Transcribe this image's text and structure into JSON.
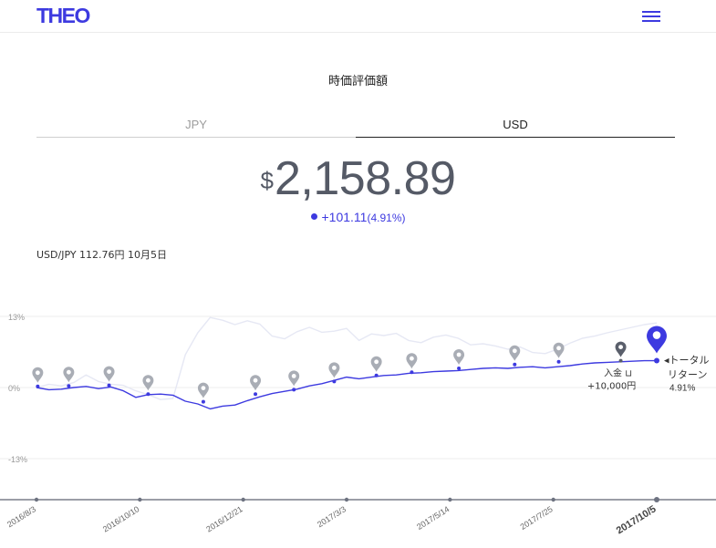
{
  "header": {
    "logo": "THEO"
  },
  "section_title": "時価評価額",
  "tabs": [
    {
      "label": "JPY",
      "active": false
    },
    {
      "label": "USD",
      "active": true
    }
  ],
  "value": {
    "currency_symbol": "$",
    "amount": "2,158.89"
  },
  "change": {
    "amount": "+101.11",
    "percent": "(4.91%)"
  },
  "fx_rate": "USD/JPY 112.76円 10月5日",
  "colors": {
    "accent": "#3d3ae0",
    "benchmark": "#e6e8f4",
    "marker": "#a9adb5",
    "marker_dark": "#5a5f6b"
  },
  "chart_data": {
    "type": "line",
    "x_ticks": [
      "2016/8/3",
      "2016/10/10",
      "2016/12/21",
      "2017/3/3",
      "2017/5/14",
      "2017/7/25",
      "2017/10/5"
    ],
    "y_ticks": [
      {
        "label": "13%",
        "value": 13
      },
      {
        "label": "0%",
        "value": 0
      },
      {
        "label": "-13%",
        "value": -13
      }
    ],
    "ylim": [
      -21,
      23
    ],
    "xlim": [
      0,
      100
    ],
    "series": [
      {
        "role": "portfolio",
        "x": [
          0,
          2,
          4,
          6,
          8,
          10,
          12,
          14,
          16,
          18,
          20,
          22,
          24,
          26,
          28,
          30,
          32,
          34,
          36,
          38,
          40,
          42,
          44,
          46,
          48,
          50,
          52,
          54,
          56,
          58,
          60,
          62,
          64,
          66,
          68,
          70,
          72,
          74,
          76,
          78,
          80,
          82,
          84,
          86,
          88,
          90,
          92,
          94,
          96,
          98,
          100
        ],
        "values": [
          0,
          -0.4,
          -0.3,
          0,
          0.2,
          -0.2,
          0.1,
          -0.6,
          -1.8,
          -1.3,
          -1.2,
          -1.4,
          -2.5,
          -3.0,
          -3.9,
          -3.4,
          -3.2,
          -2.4,
          -1.7,
          -1.1,
          -0.7,
          -0.3,
          0.3,
          0.7,
          1.3,
          1.9,
          1.6,
          1.9,
          2.2,
          2.3,
          2.6,
          2.7,
          2.9,
          3.0,
          3.1,
          3.3,
          3.5,
          3.6,
          3.5,
          3.7,
          3.8,
          3.6,
          3.8,
          4.0,
          4.3,
          4.5,
          4.6,
          4.7,
          4.8,
          4.9,
          4.91
        ]
      },
      {
        "role": "benchmark",
        "x": [
          0,
          2,
          4,
          6,
          8,
          10,
          12,
          14,
          16,
          18,
          20,
          22,
          24,
          26,
          28,
          30,
          32,
          34,
          36,
          38,
          40,
          42,
          44,
          46,
          48,
          50,
          52,
          54,
          56,
          58,
          60,
          62,
          64,
          66,
          68,
          70,
          72,
          74,
          76,
          78,
          80,
          82,
          84,
          86,
          88,
          90,
          92,
          94,
          96,
          98,
          100
        ],
        "values": [
          0,
          0.6,
          0.3,
          0.9,
          2.3,
          1.1,
          0.6,
          0.4,
          -0.6,
          -1.3,
          -2.2,
          -2.0,
          6.0,
          10.0,
          12.8,
          12.3,
          11.5,
          12.2,
          11.6,
          9.4,
          8.9,
          10.2,
          11.0,
          10.1,
          10.3,
          10.8,
          8.6,
          9.8,
          9.5,
          9.9,
          8.6,
          8.2,
          9.2,
          9.6,
          9.0,
          7.8,
          8.0,
          7.6,
          7.0,
          7.4,
          6.4,
          6.2,
          7.0,
          8.1,
          9.0,
          9.4,
          10.0,
          10.5,
          11.0,
          11.5,
          11.8
        ]
      }
    ],
    "markers": [
      {
        "x": 0.2,
        "y": 0.2,
        "label": "",
        "style": "light"
      },
      {
        "x": 5.2,
        "y": 0.3,
        "label": "",
        "style": "light"
      },
      {
        "x": 11.7,
        "y": 0.4,
        "label": "",
        "style": "light"
      },
      {
        "x": 18.0,
        "y": -1.2,
        "label": "",
        "style": "light"
      },
      {
        "x": 26.9,
        "y": -2.6,
        "label": "",
        "style": "light"
      },
      {
        "x": 35.3,
        "y": -1.2,
        "label": "",
        "style": "light"
      },
      {
        "x": 41.5,
        "y": -0.4,
        "label": "",
        "style": "light"
      },
      {
        "x": 48.0,
        "y": 1.1,
        "label": "",
        "style": "light"
      },
      {
        "x": 54.8,
        "y": 2.2,
        "label": "",
        "style": "light"
      },
      {
        "x": 60.5,
        "y": 2.8,
        "label": "",
        "style": "light"
      },
      {
        "x": 68.1,
        "y": 3.5,
        "label": "",
        "style": "light"
      },
      {
        "x": 77.1,
        "y": 4.2,
        "label": "",
        "style": "light"
      },
      {
        "x": 84.2,
        "y": 4.7,
        "label": "",
        "style": "light"
      },
      {
        "x": 94.2,
        "y": 4.9,
        "label": "入金 ⊔",
        "sublabel": "+10,000円",
        "style": "dark"
      },
      {
        "x": 100,
        "y": 4.91,
        "label": "◂トータル",
        "sublabel": "リターン",
        "value_label": "4.91%",
        "style": "accent"
      }
    ]
  }
}
